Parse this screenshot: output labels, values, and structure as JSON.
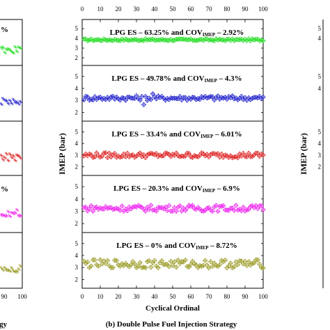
{
  "chart_data": [
    {
      "type": "scatter",
      "panel": "left (partial)",
      "x_ticks": [
        "90",
        "100"
      ],
      "fragments": [
        "%",
        "%",
        "gy"
      ],
      "colors": [
        "#22dd22",
        "#2222cc",
        "#dd2222",
        "#ee22ee",
        "#999922"
      ]
    },
    {
      "type": "scatter",
      "panel": "(b)",
      "caption": "(b) Double Pulse Fuel Injection Strategy",
      "xlabel": "Cyclical Ordinal",
      "ylabel": "IMEP (bar)",
      "x_ticks": [
        "0",
        "10",
        "20",
        "30",
        "40",
        "50",
        "60",
        "70",
        "80",
        "90",
        "100"
      ],
      "xlim": [
        0,
        100
      ],
      "ylim": [
        1.5,
        5.8
      ],
      "y_ticks": [
        "2",
        "3",
        "4",
        "5"
      ],
      "grid": false,
      "series": [
        {
          "label_main": "LPG ES – 63.25% and COV",
          "label_sub": "IMEP",
          "label_tail": " – 2.92%",
          "color": "#22dd22",
          "marker": "diamond-plus",
          "mean": 3.85,
          "spread": 0.1
        },
        {
          "label_main": "LPG ES – 49.78% and COV",
          "label_sub": "IMEP",
          "label_tail": " – 4.3%",
          "color": "#2222cc",
          "marker": "diamond-plus",
          "mean": 3.2,
          "spread": 0.2,
          "outliers": [
            [
              34,
              2.65
            ],
            [
              39,
              3.55
            ]
          ]
        },
        {
          "label_main": "LPG ES – 33.4% and COV",
          "label_sub": "IMEP",
          "label_tail": " – 6.01%",
          "color": "#dd2222",
          "marker": "diamond-plus",
          "mean": 3.0,
          "spread": 0.22
        },
        {
          "label_main": "LPG ES – 20.3% and COV",
          "label_sub": "IMEP",
          "label_tail": " – 6.9%",
          "color": "#ee22ee",
          "marker": "diamond-plus",
          "mean": 3.25,
          "spread": 0.25
        },
        {
          "label_main": "LPG ES – 0% and COV",
          "label_sub": "IMEP",
          "label_tail": " – 8.72%",
          "color": "#999922",
          "marker": "diamond-plus",
          "mean": 3.3,
          "spread": 0.35
        }
      ]
    },
    {
      "type": "scatter",
      "panel": "right (partial)",
      "ylabel": "IMEP (bar)",
      "y_ticks": [
        "2",
        "3",
        "4",
        "5"
      ]
    }
  ]
}
